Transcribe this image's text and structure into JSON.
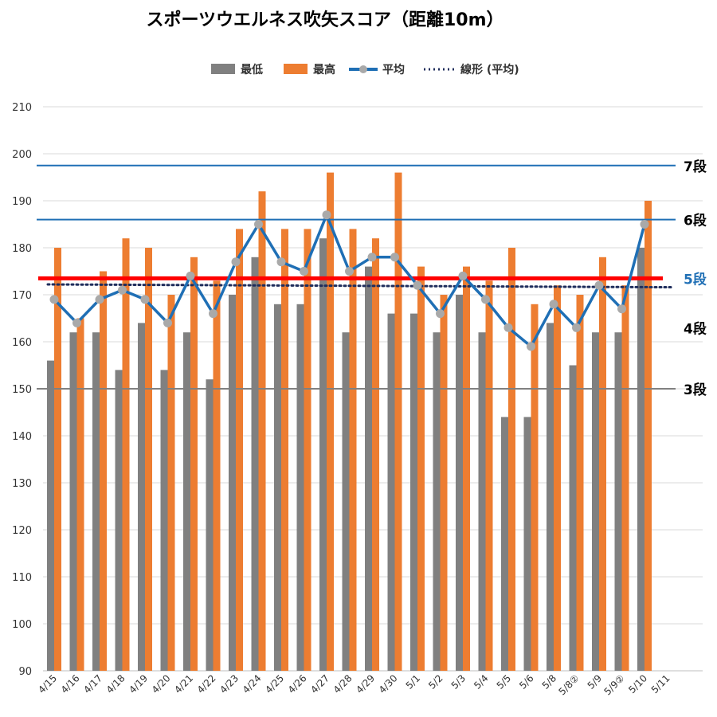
{
  "chart_data": {
    "type": "bar",
    "title": "スポーツウエルネス吹矢スコア（距離10m）",
    "xlabel": "",
    "ylabel": "",
    "ylim": [
      90,
      210
    ],
    "yticks": [
      90,
      100,
      110,
      120,
      130,
      140,
      150,
      160,
      170,
      180,
      190,
      200,
      210
    ],
    "grid": true,
    "legend_position": "top",
    "categories": [
      "4/15",
      "4/16",
      "4/17",
      "4/18",
      "4/19",
      "4/20",
      "4/21",
      "4/22",
      "4/23",
      "4/24",
      "4/25",
      "4/26",
      "4/27",
      "4/28",
      "4/29",
      "4/30",
      "5/1",
      "5/2",
      "5/3",
      "5/4",
      "5/5",
      "5/6",
      "5/8",
      "5/8②",
      "5/9",
      "5/9②",
      "5/10",
      "5/11"
    ],
    "series": [
      {
        "name": "最低",
        "kind": "bar",
        "color": "#808080",
        "values": [
          156,
          162,
          162,
          154,
          164,
          154,
          162,
          152,
          170,
          178,
          168,
          168,
          182,
          162,
          176,
          166,
          166,
          162,
          170,
          162,
          144,
          144,
          164,
          155,
          162,
          162,
          180,
          null
        ]
      },
      {
        "name": "最高",
        "kind": "bar",
        "color": "#ED7D31",
        "values": [
          180,
          165,
          175,
          182,
          180,
          170,
          178,
          173,
          184,
          192,
          184,
          184,
          196,
          184,
          182,
          196,
          176,
          170,
          176,
          173,
          180,
          168,
          172,
          170,
          178,
          172,
          190,
          null
        ]
      },
      {
        "name": "平均",
        "kind": "line",
        "color": "#1F6FB5",
        "marker_color": "#A9A9A9",
        "values": [
          169,
          164,
          169,
          171,
          169,
          164,
          174,
          166,
          177,
          185,
          177,
          175,
          187,
          175,
          178,
          178,
          172,
          166,
          174,
          169,
          163,
          159,
          168,
          163,
          172,
          167,
          185,
          null
        ]
      },
      {
        "name": "線形 (平均)",
        "kind": "trendline",
        "color": "#1F2D5C",
        "values_start_end": [
          172.2,
          171.6
        ]
      }
    ],
    "reference_lines": [
      {
        "label": "7段",
        "value": 197.5,
        "color": "#1F6FB5",
        "label_color": "#000000"
      },
      {
        "label": "6段",
        "value": 186,
        "color": "#1F6FB5",
        "label_color": "#000000"
      },
      {
        "label": "5段",
        "value": 173.5,
        "color": "#FF0000",
        "label_color": "#1F6FB5"
      },
      {
        "label": "4段",
        "value": 163,
        "color": null,
        "label_color": "#000000"
      },
      {
        "label": "3段",
        "value": 150,
        "color": "#808080",
        "label_color": "#000000"
      }
    ]
  }
}
